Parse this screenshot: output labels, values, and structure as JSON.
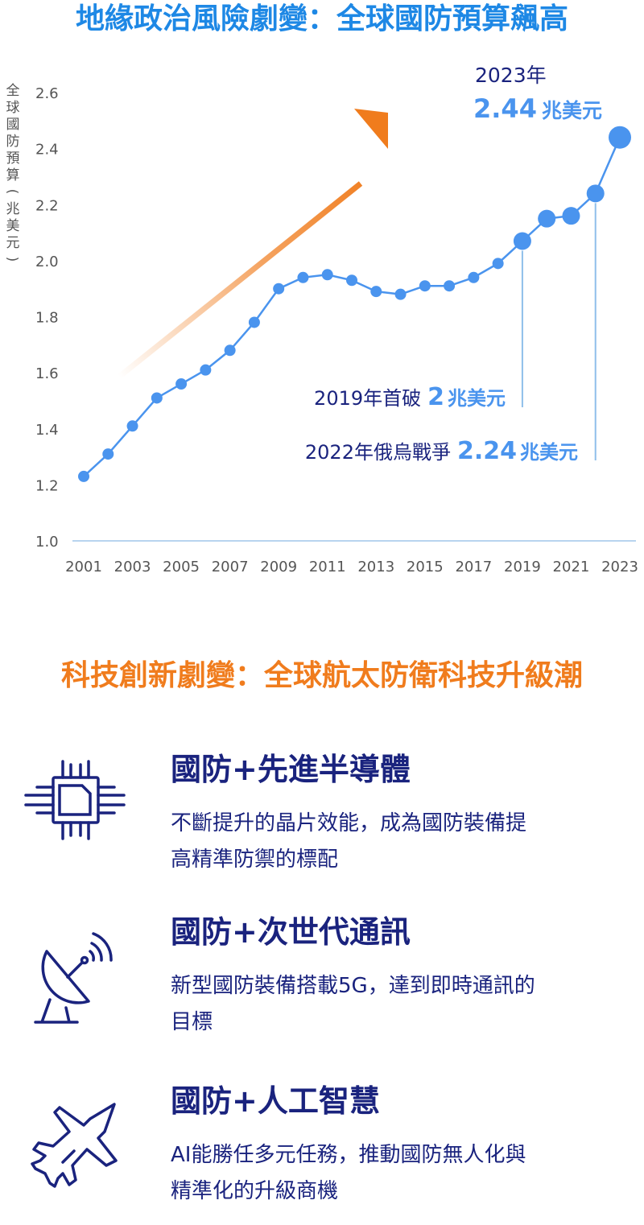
{
  "section1": {
    "title": "地緣政治風險劇變：全球國防預算飆高"
  },
  "section2": {
    "title": "科技創新劇變：全球航太防衛科技升級潮"
  },
  "chart_data": {
    "type": "line",
    "ylabel": "全球國防預算(兆美元)",
    "ylim": [
      1.0,
      2.6
    ],
    "yticks": [
      "1.0",
      "1.2",
      "1.4",
      "1.6",
      "1.8",
      "2.0",
      "2.2",
      "2.4",
      "2.6"
    ],
    "xtick_labels": [
      "2001",
      "2003",
      "2005",
      "2007",
      "2009",
      "2011",
      "2013",
      "2015",
      "2017",
      "2019",
      "2021",
      "2023"
    ],
    "x": [
      2001,
      2002,
      2003,
      2004,
      2005,
      2006,
      2007,
      2008,
      2009,
      2010,
      2011,
      2012,
      2013,
      2014,
      2015,
      2016,
      2017,
      2018,
      2019,
      2020,
      2021,
      2022,
      2023
    ],
    "values": [
      1.23,
      1.31,
      1.41,
      1.51,
      1.56,
      1.61,
      1.68,
      1.78,
      1.9,
      1.94,
      1.95,
      1.93,
      1.89,
      1.88,
      1.91,
      1.91,
      1.94,
      1.99,
      2.07,
      2.15,
      2.16,
      2.24,
      2.44
    ],
    "grid": false,
    "annotations": {
      "a2023_year": "2023年",
      "a2023_value": "2.44",
      "a2023_unit": "兆美元",
      "a2019_prefix": "2019年首破",
      "a2019_value": "2",
      "a2019_unit": "兆美元",
      "a2022_prefix": "2022年俄烏戰爭",
      "a2022_value": "2.24",
      "a2022_unit": "兆美元"
    },
    "colors": {
      "line": "#4a94ee",
      "point": "#4a94ee",
      "annotation_dark": "#1a237e",
      "annotation_accent": "#4a94ee",
      "arrow": "#f07c1d",
      "axis_text": "#555555",
      "baseline": "#b8d4ef",
      "leader": "#8fbfea"
    }
  },
  "features": [
    {
      "icon": "chip-icon",
      "title": "國防+先進半導體",
      "desc_line1": "不斷提升的晶片效能，成為國防裝備提",
      "desc_line2": "高精準防禦的標配"
    },
    {
      "icon": "satellite-dish-icon",
      "title": "國防+次世代通訊",
      "desc_line1": "新型國防裝備搭載5G，達到即時通訊的",
      "desc_line2": "目標"
    },
    {
      "icon": "fighter-jet-icon",
      "title": "國防+人工智慧",
      "desc_line1": "AI能勝任多元任務，推動國防無人化與",
      "desc_line2": "精準化的升級商機"
    }
  ],
  "icon_color": "#1a237e"
}
